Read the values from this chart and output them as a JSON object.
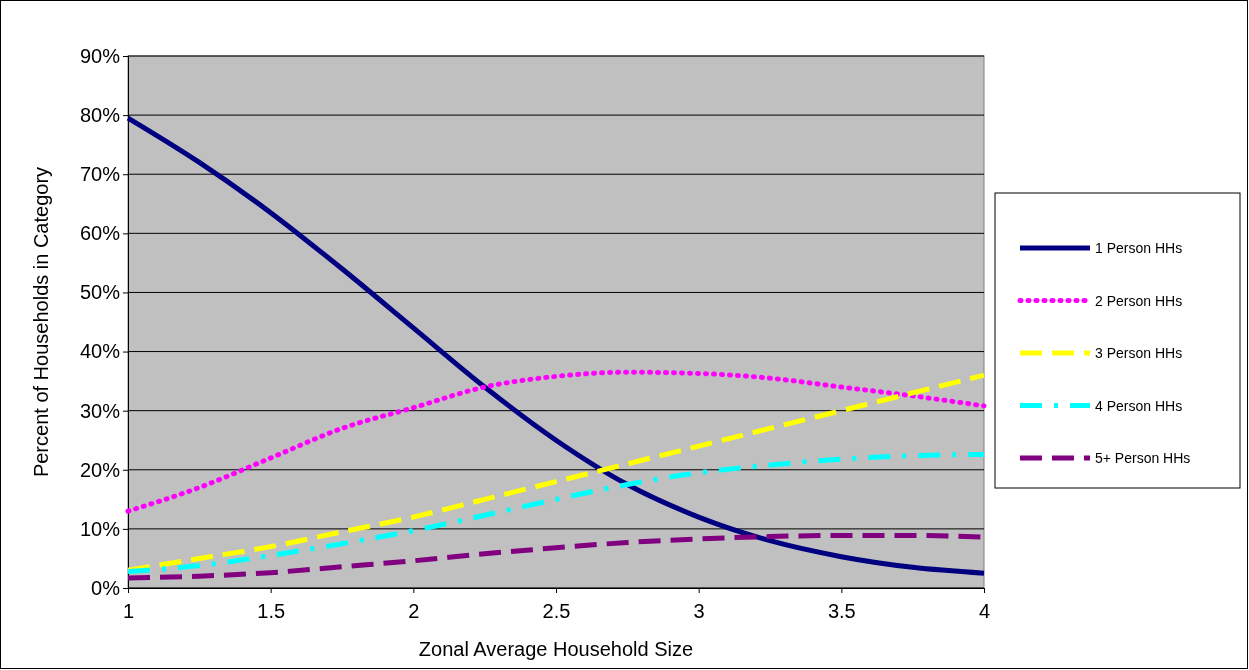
{
  "chart_data": {
    "type": "line",
    "xlabel": "Zonal Average Household Size",
    "ylabel": "Percent of Households in Category",
    "x": [
      1,
      1.25,
      1.5,
      1.75,
      2,
      2.25,
      2.5,
      2.75,
      3,
      3.25,
      3.5,
      3.75,
      4
    ],
    "series": [
      {
        "name": "1 Person HHs",
        "color": "#000080",
        "line_style": "solid",
        "values": [
          79.5,
          72,
          63.5,
          54,
          44,
          34,
          25,
          17.5,
          12,
          8,
          5.3,
          3.5,
          2.5
        ]
      },
      {
        "name": "2 Person HHs",
        "color": "#ff00ff",
        "line_style": "dotted",
        "values": [
          13,
          17,
          22,
          27,
          30.5,
          34,
          35.8,
          36.5,
          36.3,
          35.5,
          34,
          32.5,
          30.8
        ]
      },
      {
        "name": "3 Person HHs",
        "color": "#ffff00",
        "line_style": "dashed",
        "values": [
          3,
          5,
          7,
          9.5,
          12,
          15,
          18,
          21,
          24,
          27,
          30,
          33,
          36
        ]
      },
      {
        "name": "4 Person HHs",
        "color": "#00ffff",
        "line_style": "dashdot",
        "values": [
          2.8,
          3.8,
          5.5,
          7.5,
          9.7,
          12.3,
          15,
          17.5,
          19.5,
          20.8,
          21.8,
          22.4,
          22.6
        ]
      },
      {
        "name": "5+ Person HHs",
        "color": "#800080",
        "line_style": "dashed",
        "values": [
          1.7,
          2,
          2.6,
          3.6,
          4.6,
          5.8,
          6.8,
          7.7,
          8.3,
          8.7,
          8.9,
          8.9,
          8.6
        ]
      }
    ],
    "xlim": [
      1,
      4
    ],
    "xticks": [
      1,
      1.5,
      2,
      2.5,
      3,
      3.5,
      4
    ],
    "ylim": [
      0,
      90
    ],
    "yticks": [
      {
        "value": 0,
        "label": "0%"
      },
      {
        "value": 10,
        "label": "10%"
      },
      {
        "value": 20,
        "label": "20%"
      },
      {
        "value": 30,
        "label": "30%"
      },
      {
        "value": 40,
        "label": "40%"
      },
      {
        "value": 50,
        "label": "50%"
      },
      {
        "value": 60,
        "label": "60%"
      },
      {
        "value": 70,
        "label": "70%"
      },
      {
        "value": 80,
        "label": "80%"
      },
      {
        "value": 90,
        "label": "90%"
      }
    ],
    "grid": "y",
    "legend": "right",
    "marker": "none"
  }
}
